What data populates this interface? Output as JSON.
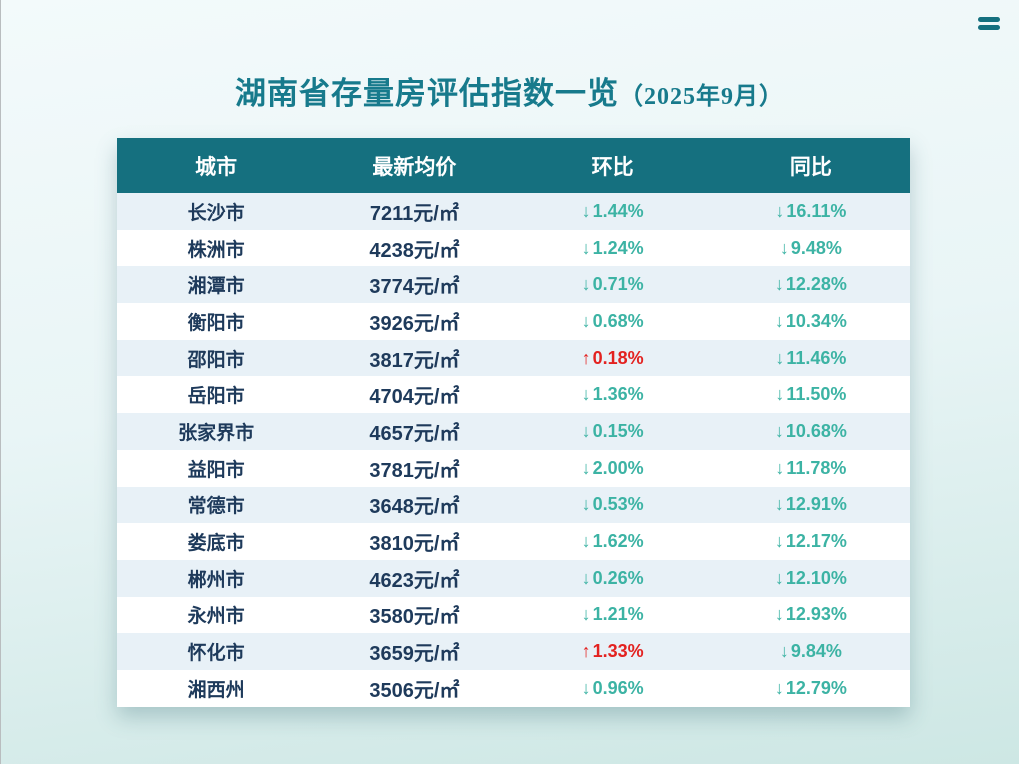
{
  "page": {
    "title_main": "湖南省存量房评估指数一览",
    "title_period": "（2025年9月）"
  },
  "icons": {
    "menu": "two horizontal teal bars (hamburger/equals menu icon)"
  },
  "colors": {
    "header-bg": "#15707f",
    "title": "#177a8c",
    "text-dark": "#1e3a5b",
    "down": "#3cb3a4",
    "up": "#e32220",
    "row-alt": "#e8f1f7",
    "bg-top": "#f3fafb",
    "bg-mid": "#e9f5f6",
    "bg-bottom": "#cde7e4"
  },
  "table": {
    "headers": [
      "城市",
      "最新均价",
      "环比",
      "同比"
    ],
    "rows": [
      {
        "city": "长沙市",
        "price": "7211元/㎡",
        "mom_arrow": "↓",
        "mom": "1.44%",
        "mom_trend": "down",
        "yoy_arrow": "↓",
        "yoy": "16.11%",
        "yoy_trend": "down"
      },
      {
        "city": "株洲市",
        "price": "4238元/㎡",
        "mom_arrow": "↓",
        "mom": "1.24%",
        "mom_trend": "down",
        "yoy_arrow": "↓",
        "yoy": "9.48%",
        "yoy_trend": "down"
      },
      {
        "city": "湘潭市",
        "price": "3774元/㎡",
        "mom_arrow": "↓",
        "mom": "0.71%",
        "mom_trend": "down",
        "yoy_arrow": "↓",
        "yoy": "12.28%",
        "yoy_trend": "down"
      },
      {
        "city": "衡阳市",
        "price": "3926元/㎡",
        "mom_arrow": "↓",
        "mom": "0.68%",
        "mom_trend": "down",
        "yoy_arrow": "↓",
        "yoy": "10.34%",
        "yoy_trend": "down"
      },
      {
        "city": "邵阳市",
        "price": "3817元/㎡",
        "mom_arrow": "↑",
        "mom": "0.18%",
        "mom_trend": "up",
        "yoy_arrow": "↓",
        "yoy": "11.46%",
        "yoy_trend": "down"
      },
      {
        "city": "岳阳市",
        "price": "4704元/㎡",
        "mom_arrow": "↓",
        "mom": "1.36%",
        "mom_trend": "down",
        "yoy_arrow": "↓",
        "yoy": "11.50%",
        "yoy_trend": "down"
      },
      {
        "city": "张家界市",
        "price": "4657元/㎡",
        "mom_arrow": "↓",
        "mom": "0.15%",
        "mom_trend": "down",
        "yoy_arrow": "↓",
        "yoy": "10.68%",
        "yoy_trend": "down"
      },
      {
        "city": "益阳市",
        "price": "3781元/㎡",
        "mom_arrow": "↓",
        "mom": "2.00%",
        "mom_trend": "down",
        "yoy_arrow": "↓",
        "yoy": "11.78%",
        "yoy_trend": "down"
      },
      {
        "city": "常德市",
        "price": "3648元/㎡",
        "mom_arrow": "↓",
        "mom": "0.53%",
        "mom_trend": "down",
        "yoy_arrow": "↓",
        "yoy": "12.91%",
        "yoy_trend": "down"
      },
      {
        "city": "娄底市",
        "price": "3810元/㎡",
        "mom_arrow": "↓",
        "mom": "1.62%",
        "mom_trend": "down",
        "yoy_arrow": "↓",
        "yoy": "12.17%",
        "yoy_trend": "down"
      },
      {
        "city": "郴州市",
        "price": "4623元/㎡",
        "mom_arrow": "↓",
        "mom": "0.26%",
        "mom_trend": "down",
        "yoy_arrow": "↓",
        "yoy": "12.10%",
        "yoy_trend": "down"
      },
      {
        "city": "永州市",
        "price": "3580元/㎡",
        "mom_arrow": "↓",
        "mom": "1.21%",
        "mom_trend": "down",
        "yoy_arrow": "↓",
        "yoy": "12.93%",
        "yoy_trend": "down"
      },
      {
        "city": "怀化市",
        "price": "3659元/㎡",
        "mom_arrow": "↑",
        "mom": "1.33%",
        "mom_trend": "up",
        "yoy_arrow": "↓",
        "yoy": "9.84%",
        "yoy_trend": "down"
      },
      {
        "city": "湘西州",
        "price": "3506元/㎡",
        "mom_arrow": "↓",
        "mom": "0.96%",
        "mom_trend": "down",
        "yoy_arrow": "↓",
        "yoy": "12.79%",
        "yoy_trend": "down"
      }
    ]
  },
  "chart_data": {
    "type": "table",
    "title": "湖南省存量房评估指数一览（2025年9月）",
    "columns": [
      "城市",
      "最新均价",
      "环比",
      "同比"
    ],
    "rows": [
      [
        "长沙市",
        "7211元/㎡",
        "↓1.44%",
        "↓16.11%"
      ],
      [
        "株洲市",
        "4238元/㎡",
        "↓1.24%",
        "↓9.48%"
      ],
      [
        "湘潭市",
        "3774元/㎡",
        "↓0.71%",
        "↓12.28%"
      ],
      [
        "衡阳市",
        "3926元/㎡",
        "↓0.68%",
        "↓10.34%"
      ],
      [
        "邵阳市",
        "3817元/㎡",
        "↑0.18%",
        "↓11.46%"
      ],
      [
        "岳阳市",
        "4704元/㎡",
        "↓1.36%",
        "↓11.50%"
      ],
      [
        "张家界市",
        "4657元/㎡",
        "↓0.15%",
        "↓10.68%"
      ],
      [
        "益阳市",
        "3781元/㎡",
        "↓2.00%",
        "↓11.78%"
      ],
      [
        "常德市",
        "3648元/㎡",
        "↓0.53%",
        "↓12.91%"
      ],
      [
        "娄底市",
        "3810元/㎡",
        "↓1.62%",
        "↓12.17%"
      ],
      [
        "郴州市",
        "4623元/㎡",
        "↓0.26%",
        "↓12.10%"
      ],
      [
        "永州市",
        "3580元/㎡",
        "↓1.21%",
        "↓12.93%"
      ],
      [
        "怀化市",
        "3659元/㎡",
        "↑1.33%",
        "↓9.84%"
      ],
      [
        "湘西州",
        "3506元/㎡",
        "↓0.96%",
        "↓12.79%"
      ]
    ]
  }
}
